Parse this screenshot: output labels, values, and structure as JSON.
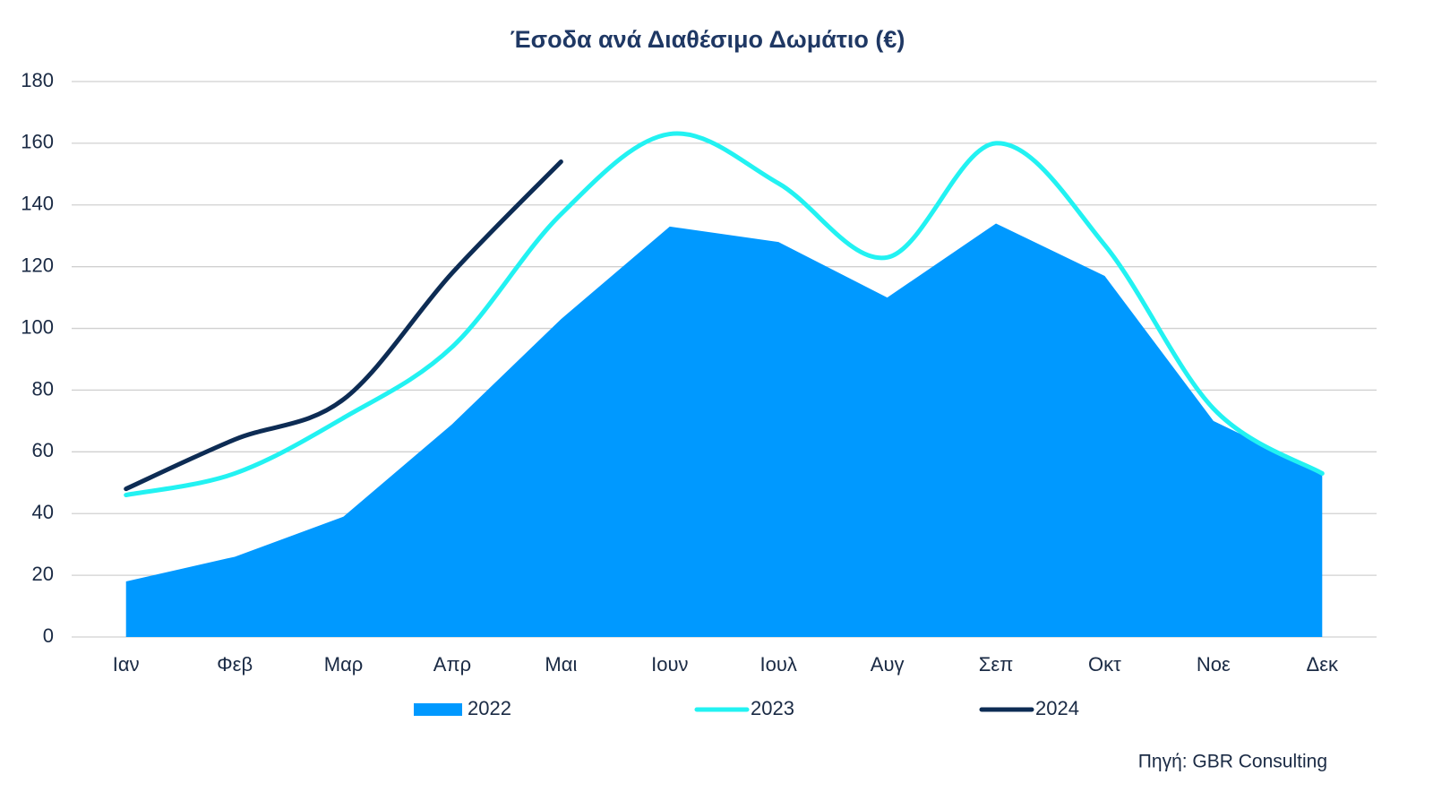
{
  "chart_data": {
    "type": "line",
    "title": "Έσοδα ανά Διαθέσιμο Δωμάτιο (€)",
    "categories": [
      "Ιαν",
      "Φεβ",
      "Μαρ",
      "Απρ",
      "Μαι",
      "Ιουν",
      "Ιουλ",
      "Αυγ",
      "Σεπ",
      "Οκτ",
      "Νοε",
      "Δεκ"
    ],
    "series": [
      {
        "name": "2022",
        "kind": "area",
        "color": "#0099ff",
        "values": [
          18,
          26,
          39,
          69,
          103,
          133,
          128,
          110,
          134,
          117,
          70,
          53
        ]
      },
      {
        "name": "2023",
        "kind": "smooth",
        "color": "#22f2f2",
        "values": [
          46,
          53,
          71,
          94,
          137,
          163,
          147,
          123,
          160,
          127,
          74,
          53
        ]
      },
      {
        "name": "2024",
        "kind": "smooth",
        "color": "#0d2c54",
        "values": [
          48,
          64,
          77,
          118,
          154,
          null,
          null,
          null,
          null,
          null,
          null,
          null
        ]
      }
    ],
    "ylim": [
      0,
      180
    ],
    "yticks": [
      0,
      20,
      40,
      60,
      80,
      100,
      120,
      140,
      160,
      180
    ],
    "grid": true,
    "legend": "bottom",
    "source": "Πηγή: GBR Consulting"
  }
}
